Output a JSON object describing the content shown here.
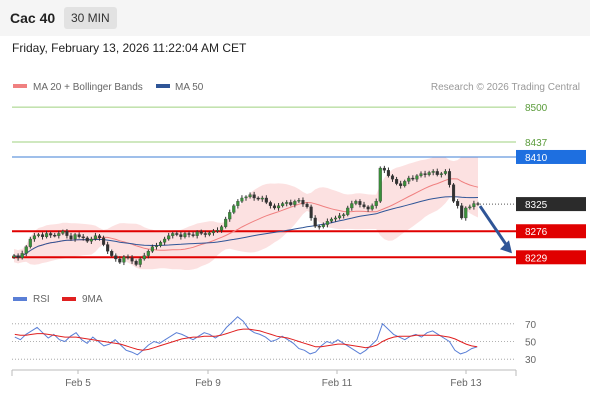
{
  "header": {
    "instrument": "Cac 40",
    "timeframe": "30 MIN",
    "timestamp": "Friday, February 13, 2026 11:22:04 AM CET"
  },
  "chart_data": [
    {
      "type": "candlestick",
      "credit": "Research © 2026 Trading Central",
      "legend": [
        {
          "name": "MA 20 + Bollinger Bands",
          "color": "#f08080"
        },
        {
          "name": "MA 50",
          "color": "#2f5597"
        }
      ],
      "y_range": [
        8170,
        8520
      ],
      "x_labels": [
        "Feb 5",
        "Feb 9",
        "Feb 11",
        "Feb 13"
      ],
      "ohlc_close_approx": [
        8232,
        8228,
        8236,
        8248,
        8262,
        8268,
        8270,
        8266,
        8272,
        8269,
        8268,
        8272,
        8276,
        8268,
        8262,
        8270,
        8266,
        8264,
        8258,
        8262,
        8268,
        8264,
        8252,
        8240,
        8232,
        8226,
        8220,
        8230,
        8228,
        8222,
        8216,
        8226,
        8232,
        8240,
        8248,
        8250,
        8256,
        8262,
        8268,
        8272,
        8270,
        8266,
        8272,
        8270,
        8268,
        8275,
        8272,
        8270,
        8273,
        8276,
        8278,
        8284,
        8298,
        8310,
        8322,
        8330,
        8336,
        8338,
        8342,
        8336,
        8334,
        8336,
        8328,
        8322,
        8318,
        8322,
        8326,
        8328,
        8324,
        8330,
        8332,
        8325,
        8320,
        8300,
        8285,
        8284,
        8288,
        8294,
        8298,
        8300,
        8304,
        8306,
        8318,
        8326,
        8330,
        8324,
        8320,
        8316,
        8322,
        8330,
        8390,
        8386,
        8376,
        8370,
        8362,
        8358,
        8366,
        8372,
        8370,
        8376,
        8380,
        8378,
        8382,
        8384,
        8378,
        8380,
        8384,
        8360,
        8330,
        8322,
        8300,
        8318,
        8320,
        8326,
        8325
      ],
      "levels": [
        {
          "label": "8500",
          "value": 8500,
          "style": "green"
        },
        {
          "label": "8437",
          "value": 8437,
          "style": "green"
        },
        {
          "label": "8410",
          "value": 8410,
          "style": "blue"
        },
        {
          "label": "8325",
          "value": 8325,
          "style": "dark"
        },
        {
          "label": "8276",
          "value": 8276,
          "style": "red"
        },
        {
          "label": "8229",
          "value": 8229,
          "style": "red"
        }
      ],
      "projection": {
        "from": 8325,
        "to": 8229
      }
    },
    {
      "type": "line",
      "legend": [
        {
          "name": "RSI",
          "color": "#5a7fd6"
        },
        {
          "name": "9MA",
          "color": "#e02020"
        }
      ],
      "y_range": [
        20,
        80
      ],
      "y_ticks": [
        "70",
        "50",
        "30"
      ],
      "series": [
        {
          "name": "RSI",
          "values": [
            55,
            52,
            58,
            62,
            66,
            60,
            54,
            58,
            52,
            50,
            56,
            60,
            52,
            48,
            55,
            50,
            45,
            47,
            52,
            46,
            40,
            38,
            35,
            40,
            46,
            50,
            48,
            52,
            56,
            60,
            58,
            55,
            52,
            56,
            60,
            58,
            54,
            58,
            66,
            72,
            78,
            73,
            64,
            60,
            58,
            55,
            50,
            52,
            56,
            52,
            48,
            42,
            40,
            36,
            38,
            45,
            50,
            48,
            52,
            48,
            44,
            40,
            36,
            40,
            46,
            52,
            70,
            64,
            58,
            55,
            52,
            56,
            58,
            55,
            60,
            62,
            58,
            54,
            50,
            40,
            36,
            38,
            42,
            44
          ]
        },
        {
          "name": "9MA",
          "values": [
            58,
            57,
            57,
            58,
            59,
            59,
            58,
            57,
            56,
            55,
            55,
            55,
            54,
            53,
            52,
            51,
            50,
            49,
            48,
            47,
            45,
            43,
            41,
            40,
            41,
            43,
            45,
            47,
            49,
            51,
            53,
            54,
            55,
            55,
            56,
            56,
            56,
            57,
            59,
            61,
            63,
            64,
            64,
            63,
            62,
            60,
            58,
            56,
            55,
            54,
            52,
            50,
            48,
            46,
            44,
            44,
            45,
            46,
            47,
            47,
            46,
            45,
            44,
            43,
            44,
            46,
            50,
            53,
            55,
            56,
            56,
            56,
            57,
            57,
            57,
            57,
            57,
            56,
            55,
            53,
            50,
            47,
            45,
            44
          ]
        }
      ]
    }
  ]
}
